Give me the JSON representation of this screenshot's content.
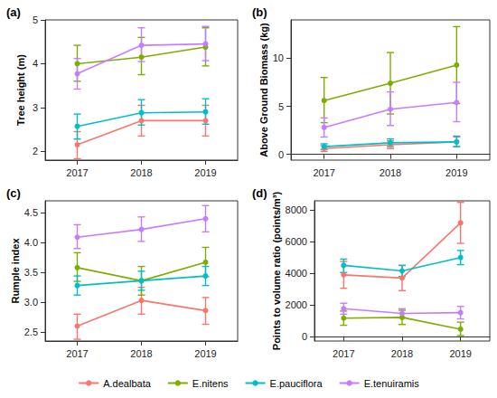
{
  "chart_data": [
    {
      "type": "line",
      "title": "(a)",
      "y_label": "Tree height (m)",
      "categories": [
        "2017",
        "2018",
        "2019"
      ],
      "ylim": [
        1.8,
        5.0
      ],
      "yticks": [
        2,
        3,
        4,
        5
      ],
      "grid": false,
      "legend": "bottom",
      "series": [
        {
          "name": "A.dealbata",
          "color": "#F8766D",
          "values": [
            2.15,
            2.7,
            2.7
          ],
          "error_low": [
            1.83,
            2.35,
            2.35
          ],
          "error_high": [
            2.45,
            3.05,
            3.05
          ]
        },
        {
          "name": "E.nitens",
          "color": "#7CAE00",
          "values": [
            4.0,
            4.15,
            4.38
          ],
          "error_low": [
            3.6,
            3.75,
            3.95
          ],
          "error_high": [
            4.42,
            4.6,
            4.82
          ]
        },
        {
          "name": "E.pauciflora",
          "color": "#00BFC4",
          "values": [
            2.57,
            2.88,
            2.9
          ],
          "error_low": [
            2.28,
            2.6,
            2.62
          ],
          "error_high": [
            2.85,
            3.18,
            3.2
          ]
        },
        {
          "name": "E.tenuiramis",
          "color": "#C77CFF",
          "values": [
            3.77,
            4.42,
            4.45
          ],
          "error_low": [
            3.42,
            4.05,
            4.07
          ],
          "error_high": [
            4.12,
            4.82,
            4.85
          ]
        }
      ]
    },
    {
      "type": "line",
      "title": "(b)",
      "y_label": "Above Ground Biomass (kg)",
      "categories": [
        "2017",
        "2018",
        "2019"
      ],
      "ylim": [
        -0.6,
        14
      ],
      "yticks": [
        0,
        5,
        10
      ],
      "grid": false,
      "legend": "bottom",
      "series": [
        {
          "name": "A.dealbata",
          "color": "#F8766D",
          "values": [
            0.6,
            1.0,
            1.3
          ],
          "error_low": [
            0.3,
            0.6,
            0.8
          ],
          "error_high": [
            0.9,
            1.4,
            1.8
          ]
        },
        {
          "name": "E.nitens",
          "color": "#7CAE00",
          "values": [
            5.6,
            7.4,
            9.3
          ],
          "error_low": [
            3.3,
            4.2,
            5.3
          ],
          "error_high": [
            8.0,
            10.6,
            13.3
          ]
        },
        {
          "name": "E.pauciflora",
          "color": "#00BFC4",
          "values": [
            0.8,
            1.2,
            1.3
          ],
          "error_low": [
            0.5,
            0.8,
            0.8
          ],
          "error_high": [
            1.1,
            1.6,
            1.9
          ]
        },
        {
          "name": "E.tenuiramis",
          "color": "#C77CFF",
          "values": [
            2.8,
            4.7,
            5.4
          ],
          "error_low": [
            1.8,
            3.0,
            3.4
          ],
          "error_high": [
            3.8,
            6.5,
            7.5
          ]
        }
      ]
    },
    {
      "type": "line",
      "title": "(c)",
      "y_label": "Rumple index",
      "categories": [
        "2017",
        "2018",
        "2019"
      ],
      "ylim": [
        2.35,
        4.7
      ],
      "yticks": [
        2.5,
        {
          "value": 3,
          "label": "3.0"
        },
        3.5,
        {
          "value": 4,
          "label": "4.0"
        },
        4.5
      ],
      "grid": false,
      "legend": "bottom",
      "series": [
        {
          "name": "A.dealbata",
          "color": "#F8766D",
          "values": [
            2.6,
            3.03,
            2.86
          ],
          "error_low": [
            2.38,
            2.8,
            2.63
          ],
          "error_high": [
            2.8,
            3.25,
            3.08
          ]
        },
        {
          "name": "E.nitens",
          "color": "#7CAE00",
          "values": [
            3.58,
            3.36,
            3.67
          ],
          "error_low": [
            3.35,
            3.12,
            3.43
          ],
          "error_high": [
            3.83,
            3.6,
            3.92
          ]
        },
        {
          "name": "E.pauciflora",
          "color": "#00BFC4",
          "values": [
            3.28,
            3.36,
            3.44
          ],
          "error_low": [
            3.12,
            3.2,
            3.28
          ],
          "error_high": [
            3.44,
            3.52,
            3.6
          ]
        },
        {
          "name": "E.tenuiramis",
          "color": "#C77CFF",
          "values": [
            4.09,
            4.22,
            4.4
          ],
          "error_low": [
            3.9,
            4.02,
            4.18
          ],
          "error_high": [
            4.3,
            4.43,
            4.62
          ]
        }
      ]
    },
    {
      "type": "line",
      "title": "(d)",
      "y_label": "Points to volume ratio (points/m³)",
      "categories": [
        "2017",
        "2018",
        "2019"
      ],
      "ylim": [
        -300,
        8600
      ],
      "yticks": [
        0,
        2000,
        4000,
        6000,
        8000
      ],
      "grid": false,
      "legend": "bottom",
      "series": [
        {
          "name": "A.dealbata",
          "color": "#F8766D",
          "values": [
            3900,
            3700,
            7200
          ],
          "error_low": [
            3050,
            2900,
            5900
          ],
          "error_high": [
            4750,
            4500,
            8500
          ]
        },
        {
          "name": "E.nitens",
          "color": "#7CAE00",
          "values": [
            1150,
            1200,
            450
          ],
          "error_low": [
            700,
            750,
            50
          ],
          "error_high": [
            1600,
            1650,
            900
          ]
        },
        {
          "name": "E.pauciflora",
          "color": "#00BFC4",
          "values": [
            4500,
            4150,
            5000
          ],
          "error_low": [
            4050,
            3800,
            4550
          ],
          "error_high": [
            4900,
            4500,
            5450
          ]
        },
        {
          "name": "E.tenuiramis",
          "color": "#C77CFF",
          "values": [
            1750,
            1450,
            1500
          ],
          "error_low": [
            1400,
            1200,
            1100
          ],
          "error_high": [
            2100,
            1750,
            1900
          ]
        }
      ]
    }
  ]
}
